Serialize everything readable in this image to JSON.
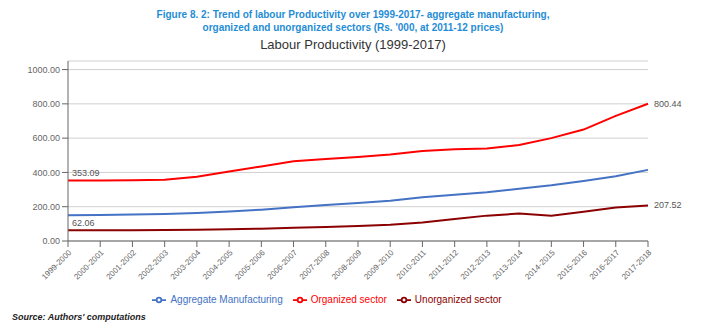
{
  "chart_data": {
    "type": "line",
    "figure_title": [
      "Figure 8. 2: Trend of labour Productivity over 1999-2017- aggregate manufacturing,",
      "organized and unorganized sectors (Rs. '000, at 2011-12 prices)"
    ],
    "title": "Labour Productivity (1999-2017)",
    "source": "Source: Authors' computations",
    "categories": [
      "1999-2000",
      "2000-2001",
      "2001-2002",
      "2002-2003",
      "2003-2004",
      "2004-2005",
      "2005-2006",
      "2006-2007",
      "2007-2008",
      "2008-2009",
      "2009-2010",
      "2010-2011",
      "2011-2012",
      "2012-2013",
      "2013-2014",
      "2014-2015",
      "2015-2016",
      "2016-2017",
      "2017-2018"
    ],
    "series": [
      {
        "name": "Aggregate Manufacturing",
        "color": "#4472C4",
        "values": [
          150,
          152,
          155,
          158,
          163,
          172,
          183,
          197,
          210,
          222,
          235,
          255,
          270,
          285,
          305,
          325,
          350,
          378,
          415
        ]
      },
      {
        "name": "Organized sector",
        "color": "#FF0000",
        "values": [
          353.09,
          353,
          355,
          358,
          375,
          405,
          435,
          465,
          478,
          490,
          505,
          525,
          535,
          540,
          560,
          600,
          650,
          730,
          800.44
        ]
      },
      {
        "name": "Unorganized sector",
        "color": "#8B0000",
        "values": [
          62.06,
          62,
          63,
          64,
          66,
          68,
          72,
          77,
          82,
          88,
          95,
          108,
          128,
          148,
          160,
          148,
          170,
          195,
          207.52
        ]
      }
    ],
    "ylim": [
      0,
      1050
    ],
    "yticks": [
      {
        "value": 0,
        "label": "0.00"
      },
      {
        "value": 200,
        "label": "200.00"
      },
      {
        "value": 400,
        "label": "400.00"
      },
      {
        "value": 600,
        "label": "600.00"
      },
      {
        "value": 800,
        "label": "800.00"
      },
      {
        "value": 1000,
        "label": "1000.00"
      }
    ],
    "grid": true,
    "legend": "bottom",
    "annotations": [
      {
        "text": "353.09",
        "x": "1999-2000",
        "y": 353.09
      },
      {
        "text": "62.06",
        "x": "1999-2000",
        "y": 62.06
      },
      {
        "text": "800.44",
        "x": "2017-2018",
        "y": 800.44
      },
      {
        "text": "207.52",
        "x": "2017-2018",
        "y": 207.52
      }
    ]
  }
}
